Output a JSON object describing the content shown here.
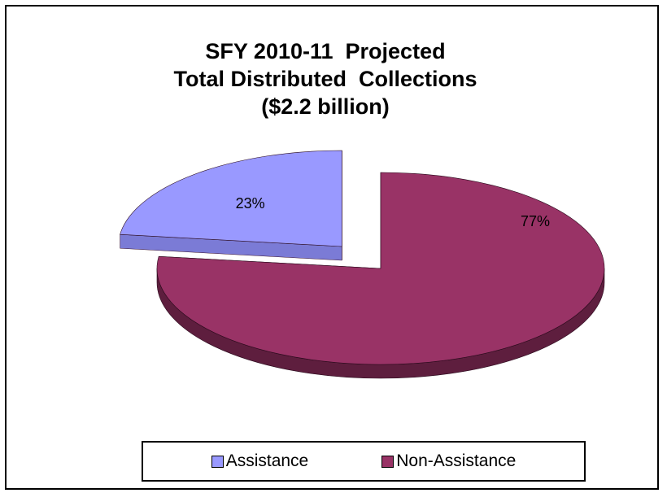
{
  "chart_data": {
    "type": "pie",
    "title_lines": [
      "SFY 2010-11  Projected",
      "Total Distributed  Collections",
      "($2.2 billion)"
    ],
    "slices": [
      {
        "name": "Assistance",
        "value": 23,
        "label": "23%",
        "color": "#9999ff",
        "side_color": "#7b7bd6",
        "exploded": true
      },
      {
        "name": "Non-Assistance",
        "value": 77,
        "label": "77%",
        "color": "#993366",
        "side_color": "#5e1e3e",
        "exploded": false
      }
    ],
    "legend_position": "bottom",
    "legend": [
      "Assistance",
      "Non-Assistance"
    ]
  }
}
